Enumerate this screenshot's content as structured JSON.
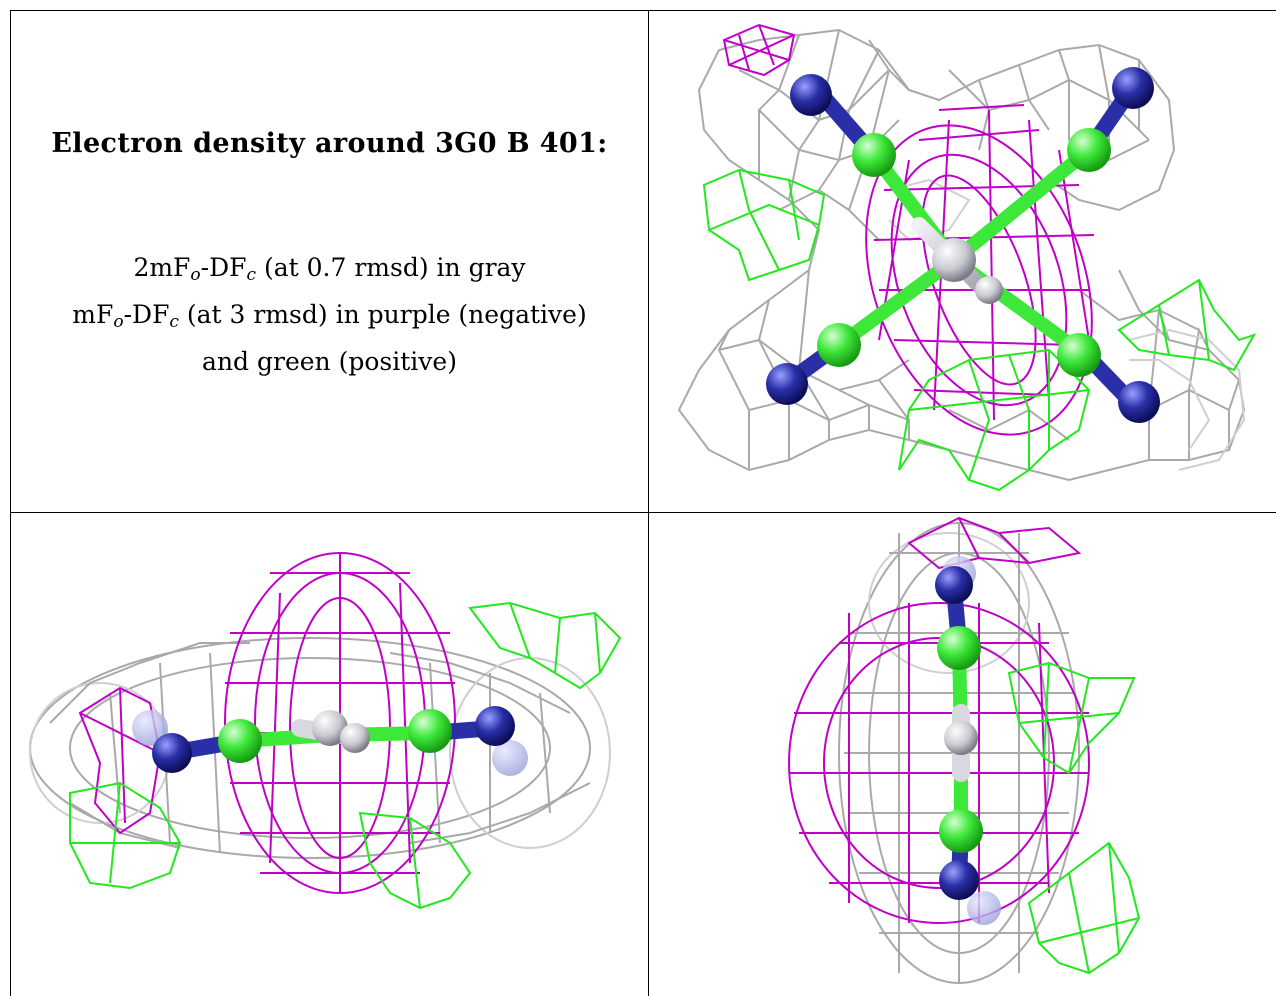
{
  "caption": {
    "title": "Electron density around 3G0 B 401:",
    "line1_prefix": "2mF",
    "line1_o": "o",
    "line1_mid": "-DF",
    "line1_c": "c",
    "line1_suffix": " (at 0.7 rmsd) in gray",
    "line2_prefix": "mF",
    "line2_o": "o",
    "line2_mid": "-DF",
    "line2_c": "c",
    "line2_suffix": " (at 3 rmsd) in purple (negative)",
    "line3": "and green (positive)"
  },
  "colors": {
    "gray_mesh": "#a9a9a9",
    "purple_mesh": "#c000c8",
    "green_mesh": "#22e81e",
    "carbon_green": "#3ee83a",
    "nitrogen_blue": "#2a2fa8",
    "center_gray": "#c8c8d0"
  }
}
